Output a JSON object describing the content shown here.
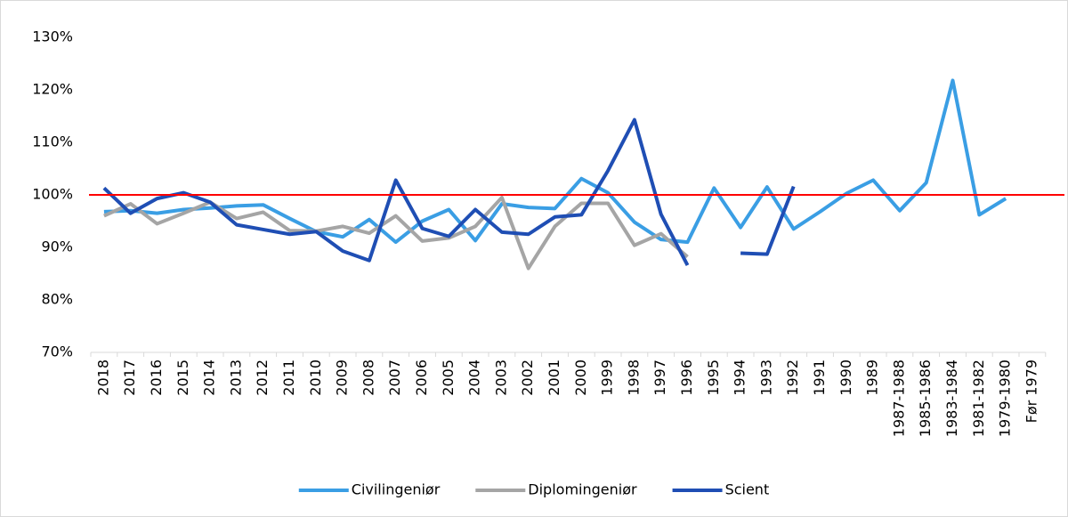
{
  "chart_data": {
    "type": "line",
    "categories": [
      "2018",
      "2017",
      "2016",
      "2015",
      "2014",
      "2013",
      "2012",
      "2011",
      "2010",
      "2009",
      "2008",
      "2007",
      "2006",
      "2005",
      "2004",
      "2003",
      "2002",
      "2001",
      "2000",
      "1999",
      "1998",
      "1997",
      "1996",
      "1995",
      "1994",
      "1993",
      "1992",
      "1991",
      "1990",
      "1989",
      "1987-1988",
      "1985-1986",
      "1983-1984",
      "1981-1982",
      "1979-1980",
      "Før 1979"
    ],
    "series": [
      {
        "name": "Civilingeniør",
        "color": "#3a9ee4",
        "values": [
          96.8,
          97.0,
          96.5,
          97.2,
          97.5,
          97.9,
          98.1,
          95.5,
          93.0,
          92.0,
          95.3,
          91.0,
          95.0,
          97.2,
          91.3,
          98.3,
          97.6,
          97.4,
          103.1,
          100.4,
          94.8,
          91.5,
          91.0,
          101.3,
          93.8,
          101.5,
          93.5,
          96.8,
          100.3,
          102.8,
          97.0,
          102.3,
          121.8,
          96.2,
          99.3,
          null
        ]
      },
      {
        "name": "Diplomingeniør",
        "color": "#a5a5a5",
        "values": [
          96.0,
          98.3,
          94.5,
          96.5,
          98.6,
          95.5,
          96.7,
          93.2,
          93.1,
          94.0,
          92.7,
          96.0,
          91.2,
          91.8,
          94.0,
          99.5,
          86.0,
          94.0,
          98.4,
          98.4,
          90.4,
          92.6,
          88.2,
          null,
          null,
          null,
          null,
          null,
          null,
          null,
          null,
          null,
          null,
          null,
          null,
          null
        ]
      },
      {
        "name": "Scient",
        "color": "#1f4eb4",
        "values": [
          101.3,
          96.5,
          99.3,
          100.4,
          98.6,
          94.3,
          93.4,
          92.5,
          93.0,
          89.3,
          87.5,
          102.8,
          93.6,
          92.1,
          97.2,
          92.9,
          92.5,
          95.8,
          96.2,
          104.6,
          114.3,
          96.3,
          86.6,
          null,
          88.9,
          88.7,
          101.6,
          null,
          null,
          null,
          null,
          null,
          null,
          null,
          null,
          null
        ]
      }
    ],
    "ylim": [
      70,
      130
    ],
    "yticks": [
      {
        "value": 70,
        "label": "70%"
      },
      {
        "value": 80,
        "label": "80%"
      },
      {
        "value": 90,
        "label": "90%"
      },
      {
        "value": 100,
        "label": "100%"
      },
      {
        "value": 110,
        "label": "110%"
      },
      {
        "value": 120,
        "label": "120%"
      },
      {
        "value": 130,
        "label": "130%"
      }
    ],
    "reference_line": {
      "value": 100,
      "color": "#ff0000"
    },
    "grid": false,
    "legend": "bottom"
  }
}
